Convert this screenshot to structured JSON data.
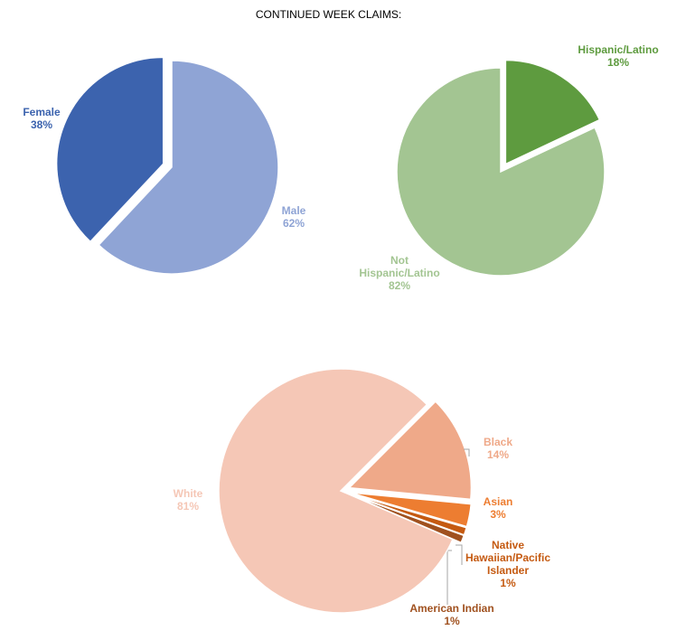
{
  "title": "CONTINUED WEEK CLAIMS:",
  "chart_data": [
    {
      "type": "pie",
      "title": "",
      "slices": [
        {
          "label": "Male",
          "value": 62,
          "pct_text": "62%",
          "color": "#8FA4D5"
        },
        {
          "label": "Female",
          "value": 38,
          "pct_text": "38%",
          "color": "#3C63AE"
        }
      ]
    },
    {
      "type": "pie",
      "title": "",
      "slices": [
        {
          "label": "Hispanic/Latino",
          "value": 18,
          "pct_text": "18%",
          "color": "#5E9B3F"
        },
        {
          "label": "Not Hispanic/Latino",
          "value": 82,
          "pct_text": "82%",
          "color": "#A3C592"
        }
      ]
    },
    {
      "type": "pie",
      "title": "",
      "slices": [
        {
          "label": "Black",
          "value": 14,
          "pct_text": "14%",
          "color": "#EFA989"
        },
        {
          "label": "Asian",
          "value": 3,
          "pct_text": "3%",
          "color": "#ED7D31"
        },
        {
          "label": "Native Hawaiian/Pacific Islander",
          "value": 1,
          "pct_text": "1%",
          "color": "#C55A11"
        },
        {
          "label": "American Indian",
          "value": 1,
          "pct_text": "1%",
          "color": "#A0511F"
        },
        {
          "label": "White",
          "value": 81,
          "pct_text": "81%",
          "color": "#F5C7B6"
        }
      ]
    }
  ]
}
